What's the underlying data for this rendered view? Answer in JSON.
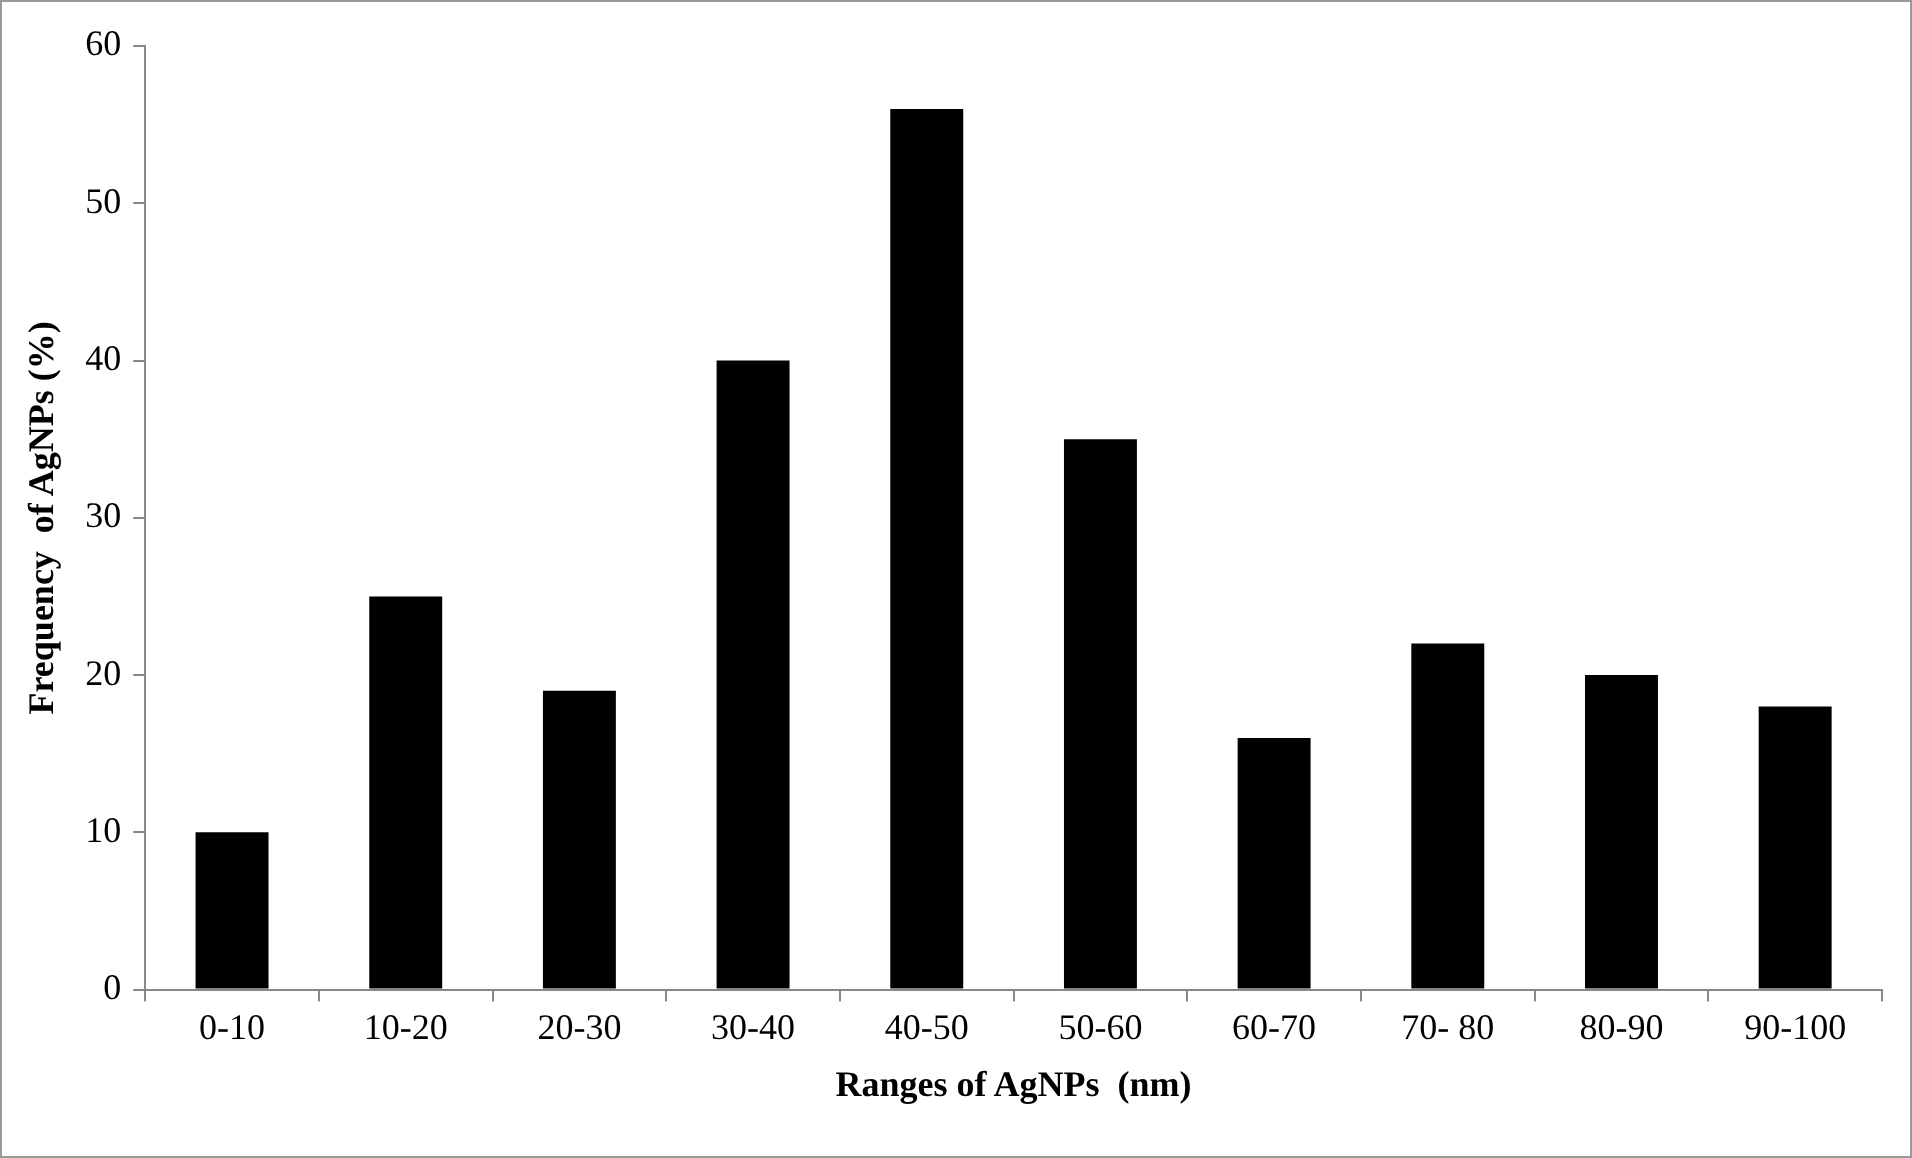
{
  "chart_data": {
    "type": "bar",
    "xlabel": "Ranges of AgNPs  (nm)",
    "ylabel": "Frequency  of AgNPs (%)",
    "categories": [
      "0-10",
      "10-20",
      "20-30",
      "30-40",
      "40-50",
      "50-60",
      "60-70",
      "70- 80",
      "80-90",
      "90-100"
    ],
    "values": [
      10,
      25,
      19,
      40,
      56,
      35,
      16,
      22,
      20,
      18
    ],
    "color": "#000000",
    "ylim": [
      0,
      60
    ],
    "yticks": [
      0,
      10,
      20,
      30,
      40,
      50,
      60
    ]
  }
}
